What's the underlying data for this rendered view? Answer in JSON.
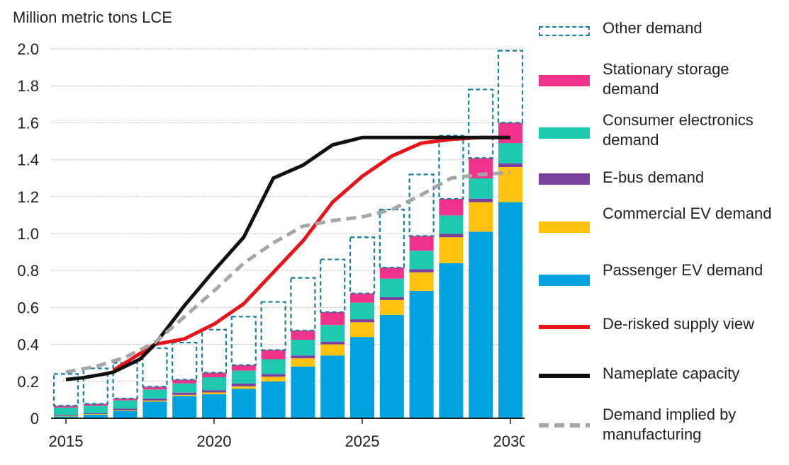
{
  "chart_data": {
    "type": "bar",
    "ylabel": "Million metric tons LCE",
    "ylim": [
      0,
      2.0
    ],
    "yticks": [
      "0",
      "0.2",
      "0.4",
      "0.6",
      "0.8",
      "1.0",
      "1.2",
      "1.4",
      "1.6",
      "1.8",
      "2.0"
    ],
    "xticks": [
      "2015",
      "2020",
      "2025",
      "2030"
    ],
    "grid": true,
    "legend_position": "right",
    "years": [
      2015,
      2016,
      2017,
      2018,
      2019,
      2020,
      2021,
      2022,
      2023,
      2024,
      2025,
      2026,
      2027,
      2028,
      2029,
      2030
    ],
    "stacked_series": [
      {
        "name": "Passenger EV demand",
        "color": "#00a3e0",
        "values": [
          0.01,
          0.02,
          0.04,
          0.09,
          0.12,
          0.13,
          0.16,
          0.2,
          0.28,
          0.34,
          0.44,
          0.56,
          0.69,
          0.84,
          1.01,
          1.17
        ]
      },
      {
        "name": "Commercial EV demand",
        "color": "#ffc20e",
        "values": [
          0.003,
          0.003,
          0.004,
          0.006,
          0.007,
          0.01,
          0.013,
          0.025,
          0.045,
          0.06,
          0.08,
          0.08,
          0.1,
          0.14,
          0.16,
          0.19
        ]
      },
      {
        "name": "E-bus demand",
        "color": "#7b3fa0",
        "values": [
          0.005,
          0.005,
          0.008,
          0.01,
          0.012,
          0.012,
          0.015,
          0.015,
          0.015,
          0.015,
          0.016,
          0.016,
          0.017,
          0.018,
          0.019,
          0.02
        ]
      },
      {
        "name": "Consumer electronics demand",
        "color": "#1ec9b0",
        "values": [
          0.04,
          0.04,
          0.045,
          0.05,
          0.05,
          0.07,
          0.07,
          0.08,
          0.085,
          0.09,
          0.09,
          0.1,
          0.1,
          0.1,
          0.11,
          0.11
        ]
      },
      {
        "name": "Stationary storage demand",
        "color": "#f0338a",
        "values": [
          0.01,
          0.01,
          0.01,
          0.015,
          0.02,
          0.025,
          0.03,
          0.05,
          0.05,
          0.07,
          0.05,
          0.06,
          0.08,
          0.09,
          0.11,
          0.11
        ]
      }
    ],
    "other_demand": {
      "name": "Other demand",
      "color": "#1a7f9c",
      "totals": [
        0.24,
        0.27,
        0.3,
        0.38,
        0.41,
        0.48,
        0.55,
        0.63,
        0.76,
        0.86,
        0.98,
        1.13,
        1.32,
        1.53,
        1.78,
        1.99
      ]
    },
    "lines": [
      {
        "name": "De-risked supply view",
        "color": "#e8141a",
        "style": "solid",
        "x": [
          2016.6,
          2018.0,
          2019.0,
          2020.0,
          2021.0,
          2022.0,
          2023.0,
          2024.0,
          2025.0,
          2026.0,
          2027.0,
          2028.0,
          2029.0,
          2030.0
        ],
        "y": [
          0.26,
          0.4,
          0.43,
          0.51,
          0.62,
          0.79,
          0.96,
          1.17,
          1.31,
          1.42,
          1.49,
          1.51,
          1.52,
          1.52
        ]
      },
      {
        "name": "Nameplate capacity",
        "color": "#111111",
        "style": "solid",
        "x": [
          2015.0,
          2015.6,
          2016.3,
          2016.6,
          2017.5,
          2018.0,
          2019.0,
          2020.0,
          2021.0,
          2022.0,
          2023.0,
          2024.0,
          2025.0,
          2026.0,
          2027.0,
          2028.0,
          2029.0,
          2030.0
        ],
        "y": [
          0.21,
          0.22,
          0.24,
          0.25,
          0.32,
          0.4,
          0.61,
          0.8,
          0.98,
          1.3,
          1.37,
          1.48,
          1.52,
          1.52,
          1.52,
          1.52,
          1.52,
          1.52
        ]
      },
      {
        "name": "Demand implied by manufacturing",
        "color": "#a6a6a6",
        "style": "dashed",
        "x": [
          2015.0,
          2016.0,
          2017.0,
          2018.0,
          2019.0,
          2020.0,
          2021.0,
          2022.0,
          2023.0,
          2024.0,
          2025.0,
          2026.0,
          2027.0,
          2028.0,
          2029.0,
          2030.0
        ],
        "y": [
          0.25,
          0.28,
          0.33,
          0.41,
          0.55,
          0.69,
          0.84,
          0.95,
          1.04,
          1.07,
          1.09,
          1.13,
          1.21,
          1.3,
          1.32,
          1.33
        ]
      }
    ],
    "legend": [
      {
        "label": "Other demand",
        "key": "other",
        "color": "#1a7f9c"
      },
      {
        "label": "Stationary storage demand",
        "key": "bar",
        "color": "#f0338a"
      },
      {
        "label": "Consumer electronics demand",
        "key": "bar",
        "color": "#1ec9b0"
      },
      {
        "label": "E-bus demand",
        "key": "bar",
        "color": "#7b3fa0"
      },
      {
        "label": "Commercial EV demand",
        "key": "bar",
        "color": "#ffc20e"
      },
      {
        "label": "Passenger EV demand",
        "key": "bar",
        "color": "#00a3e0"
      },
      {
        "label": "De-risked supply view",
        "key": "line",
        "color": "#e8141a"
      },
      {
        "label": "Nameplate capacity",
        "key": "line",
        "color": "#111111"
      },
      {
        "label": "Demand implied by manufacturing",
        "key": "dash",
        "color": "#a6a6a6"
      }
    ]
  }
}
